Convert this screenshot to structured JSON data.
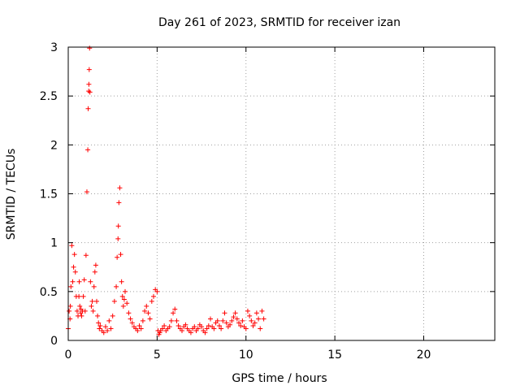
{
  "chart_data": {
    "type": "scatter",
    "title": "Day 261 of 2023, SRMTID for receiver izan",
    "xlabel": "GPS time / hours",
    "ylabel": "SRMTID / TECUs",
    "xlim": [
      0,
      24
    ],
    "ylim": [
      0,
      3
    ],
    "xticks": [
      0,
      5,
      10,
      15,
      20
    ],
    "xtick_labels": [
      "0",
      "5",
      "10",
      "15",
      "20"
    ],
    "yticks": [
      0,
      0.5,
      1,
      1.5,
      2,
      2.5,
      3
    ],
    "ytick_labels": [
      "0",
      "0.5",
      "1",
      "1.5",
      "2",
      "2.5",
      "3"
    ],
    "grid": true,
    "marker": "+",
    "marker_color": "#ff0000",
    "series": [
      {
        "name": "SRMTID",
        "x": [
          0.0,
          0.05,
          0.1,
          0.12,
          0.15,
          0.2,
          0.25,
          0.3,
          0.35,
          0.4,
          0.45,
          0.5,
          0.55,
          0.6,
          0.62,
          0.65,
          0.7,
          0.72,
          0.75,
          0.8,
          0.85,
          0.9,
          0.95,
          1.0,
          1.05,
          1.1,
          1.12,
          1.15,
          1.16,
          1.18,
          1.2,
          1.22,
          1.25,
          1.3,
          1.35,
          1.4,
          1.45,
          1.5,
          1.55,
          1.6,
          1.65,
          1.7,
          1.75,
          1.8,
          1.9,
          2.0,
          2.1,
          2.2,
          2.3,
          2.4,
          2.5,
          2.6,
          2.7,
          2.75,
          2.8,
          2.82,
          2.85,
          2.9,
          2.95,
          3.0,
          3.05,
          3.1,
          3.15,
          3.2,
          3.3,
          3.4,
          3.5,
          3.6,
          3.7,
          3.8,
          3.9,
          4.0,
          4.1,
          4.2,
          4.3,
          4.4,
          4.5,
          4.6,
          4.7,
          4.8,
          4.9,
          5.0,
          5.05,
          5.1,
          5.15,
          5.2,
          5.3,
          5.4,
          5.5,
          5.6,
          5.7,
          5.8,
          5.9,
          6.0,
          6.1,
          6.2,
          6.3,
          6.4,
          6.5,
          6.6,
          6.7,
          6.8,
          6.9,
          7.0,
          7.1,
          7.2,
          7.3,
          7.4,
          7.5,
          7.6,
          7.7,
          7.8,
          7.9,
          8.0,
          8.1,
          8.2,
          8.3,
          8.4,
          8.5,
          8.6,
          8.7,
          8.8,
          8.9,
          9.0,
          9.1,
          9.2,
          9.3,
          9.4,
          9.5,
          9.6,
          9.7,
          9.8,
          9.9,
          10.0,
          10.1,
          10.2,
          10.3,
          10.4,
          10.5,
          10.6,
          10.7,
          10.8,
          10.9,
          11.0
        ],
        "y": [
          0.12,
          0.3,
          0.22,
          0.35,
          0.55,
          0.97,
          0.6,
          0.75,
          0.88,
          0.7,
          0.45,
          0.3,
          0.25,
          0.45,
          0.6,
          0.35,
          0.28,
          0.32,
          0.25,
          0.3,
          0.45,
          0.62,
          0.3,
          0.87,
          1.52,
          1.95,
          2.37,
          2.55,
          2.62,
          2.77,
          2.99,
          2.54,
          0.6,
          0.35,
          0.4,
          0.3,
          0.55,
          0.7,
          0.77,
          0.4,
          0.25,
          0.18,
          0.12,
          0.15,
          0.1,
          0.08,
          0.14,
          0.1,
          0.2,
          0.12,
          0.25,
          0.4,
          0.55,
          0.85,
          1.04,
          1.17,
          1.41,
          1.56,
          0.88,
          0.6,
          0.45,
          0.35,
          0.42,
          0.5,
          0.38,
          0.28,
          0.22,
          0.18,
          0.14,
          0.12,
          0.1,
          0.15,
          0.12,
          0.2,
          0.3,
          0.35,
          0.28,
          0.22,
          0.4,
          0.45,
          0.52,
          0.5,
          0.1,
          0.06,
          0.08,
          0.1,
          0.12,
          0.15,
          0.1,
          0.12,
          0.14,
          0.2,
          0.28,
          0.32,
          0.2,
          0.15,
          0.12,
          0.1,
          0.14,
          0.16,
          0.12,
          0.1,
          0.08,
          0.12,
          0.14,
          0.1,
          0.12,
          0.16,
          0.14,
          0.1,
          0.08,
          0.12,
          0.15,
          0.22,
          0.14,
          0.12,
          0.18,
          0.2,
          0.15,
          0.12,
          0.2,
          0.28,
          0.18,
          0.14,
          0.16,
          0.2,
          0.24,
          0.28,
          0.22,
          0.18,
          0.15,
          0.2,
          0.14,
          0.12,
          0.3,
          0.25,
          0.2,
          0.15,
          0.18,
          0.28,
          0.22,
          0.12,
          0.3,
          0.22
        ]
      }
    ]
  }
}
